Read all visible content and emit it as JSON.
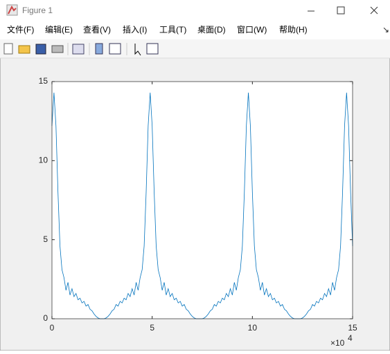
{
  "window": {
    "title": "Figure 1",
    "menu": [
      "文件(F)",
      "编辑(E)",
      "查看(V)",
      "插入(I)",
      "工具(T)",
      "桌面(D)",
      "窗口(W)",
      "帮助(H)"
    ]
  },
  "chart_data": {
    "type": "line",
    "x": [
      0,
      0.1,
      0.2,
      0.3,
      0.4,
      0.5,
      0.6,
      0.7,
      0.8,
      0.9,
      1,
      1.1,
      1.2,
      1.3,
      1.4,
      1.5,
      1.6,
      1.7,
      1.8,
      1.9,
      2,
      2.1,
      2.2,
      2.3,
      2.4,
      2.5,
      2.6,
      2.7,
      2.8,
      2.9,
      3,
      3.1,
      3.2,
      3.3,
      3.4,
      3.5,
      3.6,
      3.7,
      3.8,
      3.9,
      4,
      4.1,
      4.2,
      4.3,
      4.4,
      4.5,
      4.6,
      4.7,
      4.8,
      4.9,
      5,
      5.1,
      5.2,
      5.3,
      5.4,
      5.5,
      5.6,
      5.7,
      5.8,
      5.9,
      6,
      6.1,
      6.2,
      6.3,
      6.4,
      6.5,
      6.6,
      6.7,
      6.8,
      6.9,
      7,
      7.1,
      7.2,
      7.3,
      7.4,
      7.5,
      7.6,
      7.7,
      7.8,
      7.9,
      8,
      8.1,
      8.2,
      8.3,
      8.4,
      8.5,
      8.6,
      8.7,
      8.8,
      8.9,
      9,
      9.1,
      9.2,
      9.3,
      9.4,
      9.5,
      9.6,
      9.7,
      9.8,
      9.9,
      10,
      10.1,
      10.2,
      10.3,
      10.4,
      10.5,
      10.6,
      10.7,
      10.8,
      10.9,
      11,
      11.1,
      11.2,
      11.3,
      11.4,
      11.5,
      11.6,
      11.7,
      11.8,
      11.9,
      12,
      12.1,
      12.2,
      12.3,
      12.4,
      12.5,
      12.6,
      12.7,
      12.8,
      12.9,
      13,
      13.1,
      13.2,
      13.3,
      13.4,
      13.5,
      13.6,
      13.7,
      13.8,
      13.9,
      14,
      14.1,
      14.2,
      14.3,
      14.4,
      14.5,
      14.6,
      14.7,
      14.8,
      14.9,
      15
    ],
    "series": [
      {
        "color": "#0072bd",
        "values": [
          12.2,
          14.3,
          12.2,
          8.0,
          4.6,
          3.1,
          2.6,
          1.8,
          2.3,
          1.5,
          1.9,
          1.4,
          1.6,
          1.2,
          1.3,
          1.0,
          1.1,
          0.8,
          0.9,
          0.6,
          0.5,
          0.3,
          0.15,
          0.05,
          0,
          0,
          0,
          0.05,
          0.15,
          0.3,
          0.5,
          0.6,
          0.9,
          0.8,
          1.1,
          1.0,
          1.3,
          1.2,
          1.6,
          1.4,
          1.9,
          1.5,
          2.3,
          1.8,
          2.6,
          3.1,
          4.6,
          8.0,
          12.2,
          14.3,
          12.2,
          8.0,
          4.6,
          3.1,
          2.6,
          1.8,
          2.3,
          1.5,
          1.9,
          1.4,
          1.6,
          1.2,
          1.3,
          1.0,
          1.1,
          0.8,
          0.9,
          0.6,
          0.5,
          0.3,
          0.15,
          0.05,
          0,
          0,
          0,
          0,
          0.05,
          0.15,
          0.3,
          0.5,
          0.6,
          0.9,
          0.8,
          1.1,
          1.0,
          1.3,
          1.2,
          1.6,
          1.4,
          1.9,
          1.5,
          2.3,
          1.8,
          2.6,
          3.1,
          4.6,
          8.0,
          12.2,
          14.3,
          12.2,
          8.0,
          4.6,
          3.1,
          2.6,
          1.8,
          2.3,
          1.5,
          1.9,
          1.4,
          1.6,
          1.2,
          1.3,
          1.0,
          1.1,
          0.8,
          0.9,
          0.6,
          0.5,
          0.3,
          0.15,
          0.05,
          0,
          0,
          0,
          0,
          0.05,
          0.15,
          0.3,
          0.5,
          0.6,
          0.9,
          0.8,
          1.1,
          1.0,
          1.3,
          1.2,
          1.6,
          1.4,
          1.9,
          1.5,
          2.3,
          1.8,
          2.6,
          3.1,
          4.6,
          8.0,
          12.2,
          14.3,
          12.2,
          8.0,
          4.6
        ]
      }
    ],
    "xlim": [
      0,
      15
    ],
    "xticks": [
      0,
      5,
      10,
      15
    ],
    "ylim": [
      0,
      15
    ],
    "yticks": [
      0,
      5,
      10,
      15
    ],
    "x_multiplier": "×10",
    "x_multiplier_exponent": "4"
  }
}
